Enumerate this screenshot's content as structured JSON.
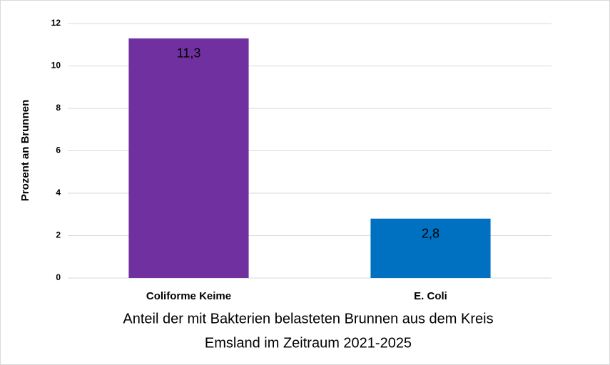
{
  "chart_data": {
    "type": "bar",
    "categories": [
      "Coliforme Keime",
      "E. Coli"
    ],
    "values": [
      11.3,
      2.8
    ],
    "value_labels": [
      "11,3",
      "2,8"
    ],
    "colors": [
      "#7030a0",
      "#0070c0"
    ],
    "ylabel": "Prozent an Brunnen",
    "xlabel": [
      "Anteil der mit Bakterien belasteten Brunnen aus dem Kreis",
      "Emsland im Zeitraum 2021-2025"
    ],
    "ylim": [
      0,
      12
    ],
    "yticks": [
      0,
      2,
      4,
      6,
      8,
      10,
      12
    ],
    "grid": true
  }
}
